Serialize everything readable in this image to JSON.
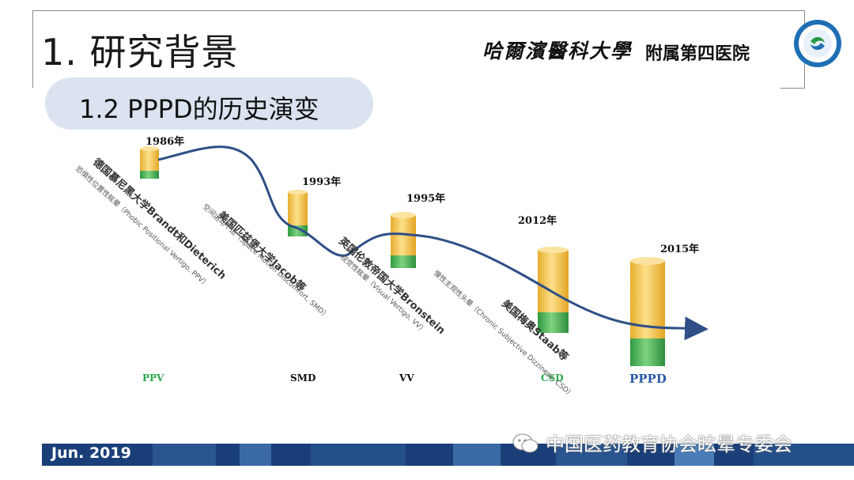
{
  "header": {
    "title": "1. 研究背景",
    "subtitle": "1.2 PPPD的历史演变",
    "university": "哈爾濱醫科大學",
    "hospital": "附属第四医院"
  },
  "timeline": [
    {
      "year": "1986年",
      "abbr": "PPV",
      "origin": "德国慕尼黑大学Brandt和Dieterich",
      "term": "恐惧性位置性眩晕（Phobic Positional Vertigo, PPV）",
      "abbr_color": "#2aa84a"
    },
    {
      "year": "1993年",
      "abbr": "SMD",
      "origin": "美国匹兹堡大学Jacob等",
      "term": "空间运动不适（Space Motion Discomfort, SMD）",
      "abbr_color": "#111111"
    },
    {
      "year": "1995年",
      "abbr": "VV",
      "origin": "英国伦敦帝国大学Bronstein",
      "term": "视觉性眩晕（Visual Vertigo, VV）",
      "abbr_color": "#111111"
    },
    {
      "year": "2012年",
      "abbr": "CSD",
      "origin": "美国梅奥Staab等",
      "term": "慢性主观性头晕（Chronic Subjective Dizziness, CSD）",
      "abbr_color": "#2aa84a"
    },
    {
      "year": "2015年",
      "abbr": "PPPD",
      "origin": "",
      "term": "",
      "abbr_color": "#2a5aa8"
    }
  ],
  "footer": {
    "date": "Jun. 2019",
    "watermark": "中国医药教育协会眩晕专委会"
  },
  "colors": {
    "cyl_yellow": "#f5c24a",
    "cyl_green": "#3aa94a",
    "curve": "#2f4f86",
    "bar_dark": "#1a3f78"
  }
}
